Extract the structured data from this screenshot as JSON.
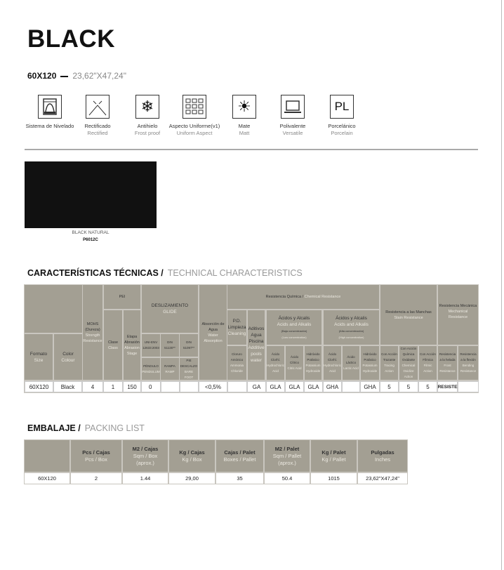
{
  "title": "BLACK",
  "size": {
    "metric": "60X120",
    "inches": "23,62\"X47,24\""
  },
  "features": [
    {
      "icon": "leveling-system-icon",
      "es": "Sistema de Nivelado",
      "en": ""
    },
    {
      "icon": "rectified-icon",
      "es": "Rectificado",
      "en": "Rectified"
    },
    {
      "icon": "snowflake-icon",
      "es": "Antihielo",
      "en": "Frost proof"
    },
    {
      "icon": "grid-icon",
      "es": "Aspecto Uniforme(v1)",
      "en": "Uniform Aspect"
    },
    {
      "icon": "sun-icon",
      "es": "Mate",
      "en": "Matt"
    },
    {
      "icon": "laptop-icon",
      "es": "Polivalente",
      "en": "Versatile"
    },
    {
      "icon": "pl-icon",
      "es": "Porcelánico",
      "en": "Porcelain",
      "glyph": "PL"
    }
  ],
  "swatch": {
    "name": "BLACK NATURAL",
    "code": "P6012C",
    "color": "#111111"
  },
  "tech": {
    "title_es": "CARACTERÍSTICAS TÉCNICAS",
    "sep": "/",
    "title_en": "TECHNICAL CHARACTERISTICS",
    "h": {
      "formato": [
        "Formato",
        "Size"
      ],
      "color": [
        "Color",
        "Colour"
      ],
      "mohs": [
        "MOHS (Dureza)",
        "Strength Resistance"
      ],
      "pei": [
        "PEI",
        ""
      ],
      "clase": [
        "Clase",
        "Class"
      ],
      "etapa": [
        "Etapa Abrasión",
        "Abrasion Stage"
      ],
      "desl": [
        "DESLIZAMIENTO",
        "GLIDE"
      ],
      "uni": [
        "UNI-ENV 12633:2003",
        ""
      ],
      "din1": [
        "DIN 51130**",
        ""
      ],
      "din2": [
        "DIN 51097**",
        ""
      ],
      "pend": [
        "PÉNDULO",
        "PENDULUM"
      ],
      "rampa": [
        "RAMPA",
        "RAMP"
      ],
      "pie": [
        "PIE DESCALZO",
        "BARE FOOT"
      ],
      "abs": [
        "Absorción de Agua",
        "Water Absorption"
      ],
      "chem": [
        "Resistencia Química /",
        "Chemical Resistance"
      ],
      "pdl": [
        "P.D. Limpieza",
        "Cleaning"
      ],
      "adit": [
        "Aditivos Agua Piscina",
        "Additive pools water"
      ],
      "acl": [
        "Ácidos y Alcalis",
        "Acids and Alkalis",
        "(Baja concentración)",
        "(Low concentration)"
      ],
      "ach": [
        "Ácidos y Alcalis",
        "Acids and Alkalis",
        "(Alta concentración)",
        "(High concentration)"
      ],
      "clor": [
        "Cloruro Amónico",
        "Ammonia Chloride"
      ],
      "a1": [
        "Ácido Clorhí.",
        "Hydrochloric Acid"
      ],
      "a2": [
        "Ácido Cítrico",
        "Citric Acid"
      ],
      "a3": [
        "Hidróxido Potásico",
        "Potassium Hydroxide"
      ],
      "a4": [
        "Ácido Clorhí.",
        "Hydrochloric Acid"
      ],
      "a5": [
        "Ácido Láctico",
        "Lactic Acid"
      ],
      "a6": [
        "Hidróxido Potásico",
        "Potassium Hydroxide"
      ],
      "stain": [
        "Resistencia a las Manchas",
        "Stain Resistance"
      ],
      "s1": [
        "Con Acción Trazante",
        "Tracing Action"
      ],
      "s2": [
        "Con Acción Química Oxidante",
        "Chemical Oxidize Action"
      ],
      "s3": [
        "Con Acción Fílmica",
        "Filmic Action"
      ],
      "mech": [
        "Resistencia Mecánica",
        "Mechanical Resistance"
      ],
      "m1": [
        "Resistencia a la helada",
        "Frost Resistance"
      ],
      "m2": [
        "Resistencia a la flexión",
        "Bending Resistance"
      ]
    },
    "row": [
      "60X120",
      "Black",
      "4",
      "1",
      "150",
      "0",
      "",
      "",
      "<0,5%",
      "",
      "GA",
      "GLA",
      "GLA",
      "GLA",
      "GHA",
      "",
      "GHA",
      "5",
      "5",
      "5",
      "RESISTE",
      ""
    ]
  },
  "packing": {
    "title_es": "EMBALAJE",
    "sep": "/",
    "title_en": "PACKING LIST",
    "headers": [
      [
        "",
        ""
      ],
      [
        "Pcs / Cajas",
        "Pcs / Box"
      ],
      [
        "M2 / Cajas",
        "Sqm / Box (aprox.)"
      ],
      [
        "Kg / Cajas",
        "Kg / Box"
      ],
      [
        "Cajas / Palet",
        "Boxes / Pallet"
      ],
      [
        "M2 / Palet",
        "Sqm / Pallet (aprox.)"
      ],
      [
        "Kg / Palet",
        "Kg / Pallet"
      ],
      [
        "Pulgadas",
        "Inches"
      ]
    ],
    "row": [
      "60X120",
      "2",
      "1.44",
      "29,00",
      "35",
      "50.4",
      "1015",
      "23,62\"X47,24\""
    ]
  },
  "colors": {
    "header_bg": "#a39f93",
    "subtitle": "#ebe8e0"
  }
}
